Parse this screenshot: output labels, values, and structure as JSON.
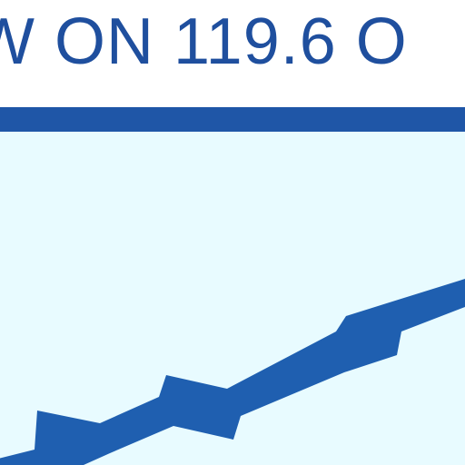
{
  "graphic": {
    "headline": "W ON 119.6 O"
  },
  "colors": {
    "headline_text": "#1f4f9e",
    "rule": "#1f56a7",
    "plot_background": "#e8fbff",
    "line": "#1f5fb0"
  }
}
